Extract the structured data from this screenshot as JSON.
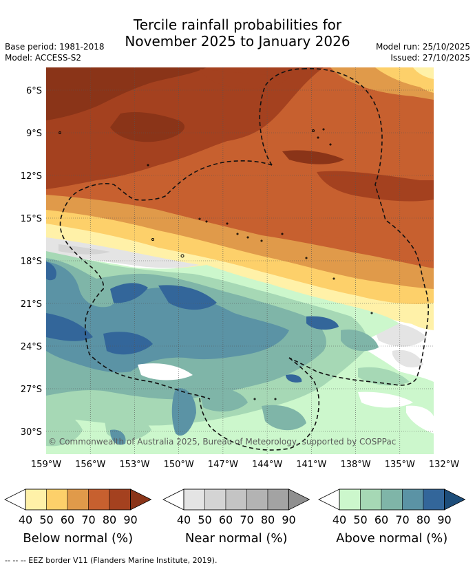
{
  "title": {
    "line1": "Tercile rainfall probabilities for",
    "line2": "November 2025 to January 2026"
  },
  "meta": {
    "base_period": "Base period: 1981-2018",
    "model": "Model: ACCESS-S2",
    "model_run": "Model run: 25/10/2025",
    "issued": "Issued: 27/10/2025"
  },
  "map": {
    "lat_labels": [
      "6°S",
      "9°S",
      "12°S",
      "15°S",
      "18°S",
      "21°S",
      "24°S",
      "27°S",
      "30°S"
    ],
    "lat_values": [
      -6,
      -9,
      -12,
      -15,
      -18,
      -21,
      -24,
      -27,
      -30
    ],
    "lon_labels": [
      "159°W",
      "156°W",
      "153°W",
      "150°W",
      "147°W",
      "144°W",
      "141°W",
      "138°W",
      "135°W",
      "132°W"
    ],
    "lon_values": [
      -159,
      -156,
      -153,
      -150,
      -147,
      -144,
      -141,
      -138,
      -135,
      -132
    ],
    "copyright": "© Commonwealth of Australia 2025, Bureau of Meteorology, supported by COSPPac"
  },
  "colorbars": [
    {
      "id": "below",
      "title": "Below normal (%)",
      "ticks": [
        "40",
        "50",
        "60",
        "70",
        "80",
        "90"
      ],
      "colors": [
        "#fff1a8",
        "#fdd06a",
        "#e09a4a",
        "#c7602f",
        "#a4411f",
        "#8a3418"
      ]
    },
    {
      "id": "near",
      "title": "Near normal (%)",
      "ticks": [
        "40",
        "50",
        "60",
        "70",
        "80",
        "90"
      ],
      "colors": [
        "#e4e4e4",
        "#d4d4d4",
        "#c4c4c4",
        "#b3b3b3",
        "#a3a3a3",
        "#8f8f8f"
      ]
    },
    {
      "id": "above",
      "title": "Above normal (%)",
      "ticks": [
        "40",
        "50",
        "60",
        "70",
        "80",
        "90"
      ],
      "colors": [
        "#ccf7cc",
        "#a6d8b5",
        "#7fb5a8",
        "#5b93a5",
        "#33669a",
        "#1d4d7a"
      ]
    }
  ],
  "legend_note": "--  --  -- EEZ border V11 (Flanders Marine Institute, 2019)."
}
